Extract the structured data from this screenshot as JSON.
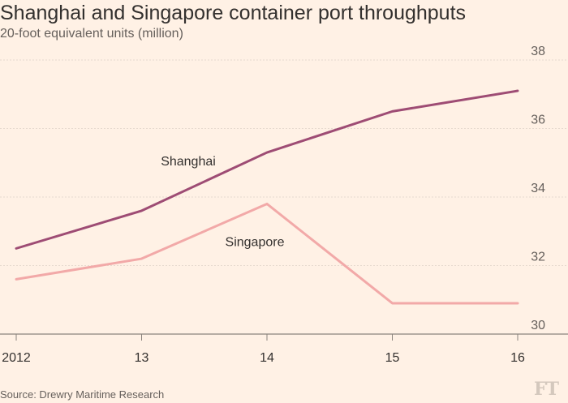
{
  "header": {
    "title": "Shanghai and Singapore container port throughputs",
    "subtitle": "20-foot equivalent units (million)"
  },
  "footer": {
    "source": "Source: Drewry Maritime Research",
    "logo": "FT"
  },
  "chart_data": {
    "type": "line",
    "x": [
      "2012",
      "13",
      "14",
      "15",
      "16"
    ],
    "ylim": [
      30,
      38
    ],
    "yticks": [
      30,
      32,
      34,
      36,
      38
    ],
    "grid": true,
    "series": [
      {
        "name": "Shanghai",
        "color": "#9e4c74",
        "values": [
          32.5,
          33.6,
          35.3,
          36.5,
          37.1
        ]
      },
      {
        "name": "Singapore",
        "color": "#f2a9a8",
        "values": [
          31.6,
          32.2,
          33.8,
          30.9,
          30.9
        ]
      }
    ]
  }
}
